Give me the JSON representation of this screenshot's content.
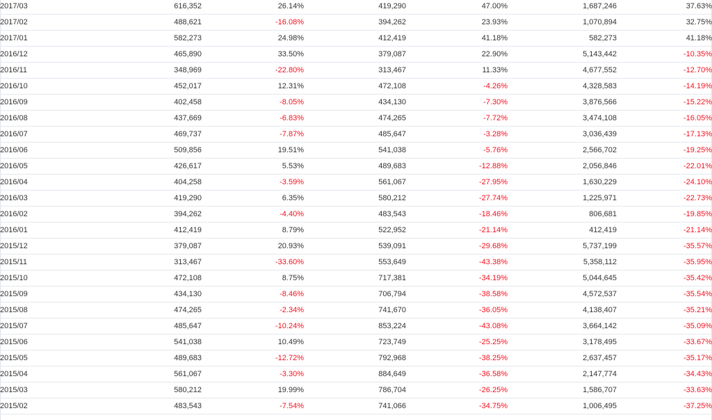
{
  "rows": [
    {
      "month": "2017/03",
      "v1": "616,352",
      "p1": "26.14%",
      "v2": "419,290",
      "p2": "47.00%",
      "v3": "1,687,246",
      "p3": "37.63%"
    },
    {
      "month": "2017/02",
      "v1": "488,621",
      "p1": "-16.08%",
      "v2": "394,262",
      "p2": "23.93%",
      "v3": "1,070,894",
      "p3": "32.75%"
    },
    {
      "month": "2017/01",
      "v1": "582,273",
      "p1": "24.98%",
      "v2": "412,419",
      "p2": "41.18%",
      "v3": "582,273",
      "p3": "41.18%"
    },
    {
      "month": "2016/12",
      "v1": "465,890",
      "p1": "33.50%",
      "v2": "379,087",
      "p2": "22.90%",
      "v3": "5,143,442",
      "p3": "-10.35%"
    },
    {
      "month": "2016/11",
      "v1": "348,969",
      "p1": "-22.80%",
      "v2": "313,467",
      "p2": "11.33%",
      "v3": "4,677,552",
      "p3": "-12.70%"
    },
    {
      "month": "2016/10",
      "v1": "452,017",
      "p1": "12.31%",
      "v2": "472,108",
      "p2": "-4.26%",
      "v3": "4,328,583",
      "p3": "-14.19%"
    },
    {
      "month": "2016/09",
      "v1": "402,458",
      "p1": "-8.05%",
      "v2": "434,130",
      "p2": "-7.30%",
      "v3": "3,876,566",
      "p3": "-15.22%"
    },
    {
      "month": "2016/08",
      "v1": "437,669",
      "p1": "-6.83%",
      "v2": "474,265",
      "p2": "-7.72%",
      "v3": "3,474,108",
      "p3": "-16.05%"
    },
    {
      "month": "2016/07",
      "v1": "469,737",
      "p1": "-7.87%",
      "v2": "485,647",
      "p2": "-3.28%",
      "v3": "3,036,439",
      "p3": "-17.13%"
    },
    {
      "month": "2016/06",
      "v1": "509,856",
      "p1": "19.51%",
      "v2": "541,038",
      "p2": "-5.76%",
      "v3": "2,566,702",
      "p3": "-19.25%"
    },
    {
      "month": "2016/05",
      "v1": "426,617",
      "p1": "5.53%",
      "v2": "489,683",
      "p2": "-12.88%",
      "v3": "2,056,846",
      "p3": "-22.01%"
    },
    {
      "month": "2016/04",
      "v1": "404,258",
      "p1": "-3.59%",
      "v2": "561,067",
      "p2": "-27.95%",
      "v3": "1,630,229",
      "p3": "-24.10%"
    },
    {
      "month": "2016/03",
      "v1": "419,290",
      "p1": "6.35%",
      "v2": "580,212",
      "p2": "-27.74%",
      "v3": "1,225,971",
      "p3": "-22.73%"
    },
    {
      "month": "2016/02",
      "v1": "394,262",
      "p1": "-4.40%",
      "v2": "483,543",
      "p2": "-18.46%",
      "v3": "806,681",
      "p3": "-19.85%"
    },
    {
      "month": "2016/01",
      "v1": "412,419",
      "p1": "8.79%",
      "v2": "522,952",
      "p2": "-21.14%",
      "v3": "412,419",
      "p3": "-21.14%"
    },
    {
      "month": "2015/12",
      "v1": "379,087",
      "p1": "20.93%",
      "v2": "539,091",
      "p2": "-29.68%",
      "v3": "5,737,199",
      "p3": "-35.57%"
    },
    {
      "month": "2015/11",
      "v1": "313,467",
      "p1": "-33.60%",
      "v2": "553,649",
      "p2": "-43.38%",
      "v3": "5,358,112",
      "p3": "-35.95%"
    },
    {
      "month": "2015/10",
      "v1": "472,108",
      "p1": "8.75%",
      "v2": "717,381",
      "p2": "-34.19%",
      "v3": "5,044,645",
      "p3": "-35.42%"
    },
    {
      "month": "2015/09",
      "v1": "434,130",
      "p1": "-8.46%",
      "v2": "706,794",
      "p2": "-38.58%",
      "v3": "4,572,537",
      "p3": "-35.54%"
    },
    {
      "month": "2015/08",
      "v1": "474,265",
      "p1": "-2.34%",
      "v2": "741,670",
      "p2": "-36.05%",
      "v3": "4,138,407",
      "p3": "-35.21%"
    },
    {
      "month": "2015/07",
      "v1": "485,647",
      "p1": "-10.24%",
      "v2": "853,224",
      "p2": "-43.08%",
      "v3": "3,664,142",
      "p3": "-35.09%"
    },
    {
      "month": "2015/06",
      "v1": "541,038",
      "p1": "10.49%",
      "v2": "723,749",
      "p2": "-25.25%",
      "v3": "3,178,495",
      "p3": "-33.67%"
    },
    {
      "month": "2015/05",
      "v1": "489,683",
      "p1": "-12.72%",
      "v2": "792,968",
      "p2": "-38.25%",
      "v3": "2,637,457",
      "p3": "-35.17%"
    },
    {
      "month": "2015/04",
      "v1": "561,067",
      "p1": "-3.30%",
      "v2": "884,649",
      "p2": "-36.58%",
      "v3": "2,147,774",
      "p3": "-34.43%"
    },
    {
      "month": "2015/03",
      "v1": "580,212",
      "p1": "19.99%",
      "v2": "786,704",
      "p2": "-26.25%",
      "v3": "1,586,707",
      "p3": "-33.63%"
    },
    {
      "month": "2015/02",
      "v1": "483,543",
      "p1": "-7.54%",
      "v2": "741,066",
      "p2": "-34.75%",
      "v3": "1,006,495",
      "p3": "-37.25%"
    }
  ],
  "colors": {
    "negative": "#f2111f",
    "positive": "#333333",
    "row_border": "#e3e8ee"
  }
}
